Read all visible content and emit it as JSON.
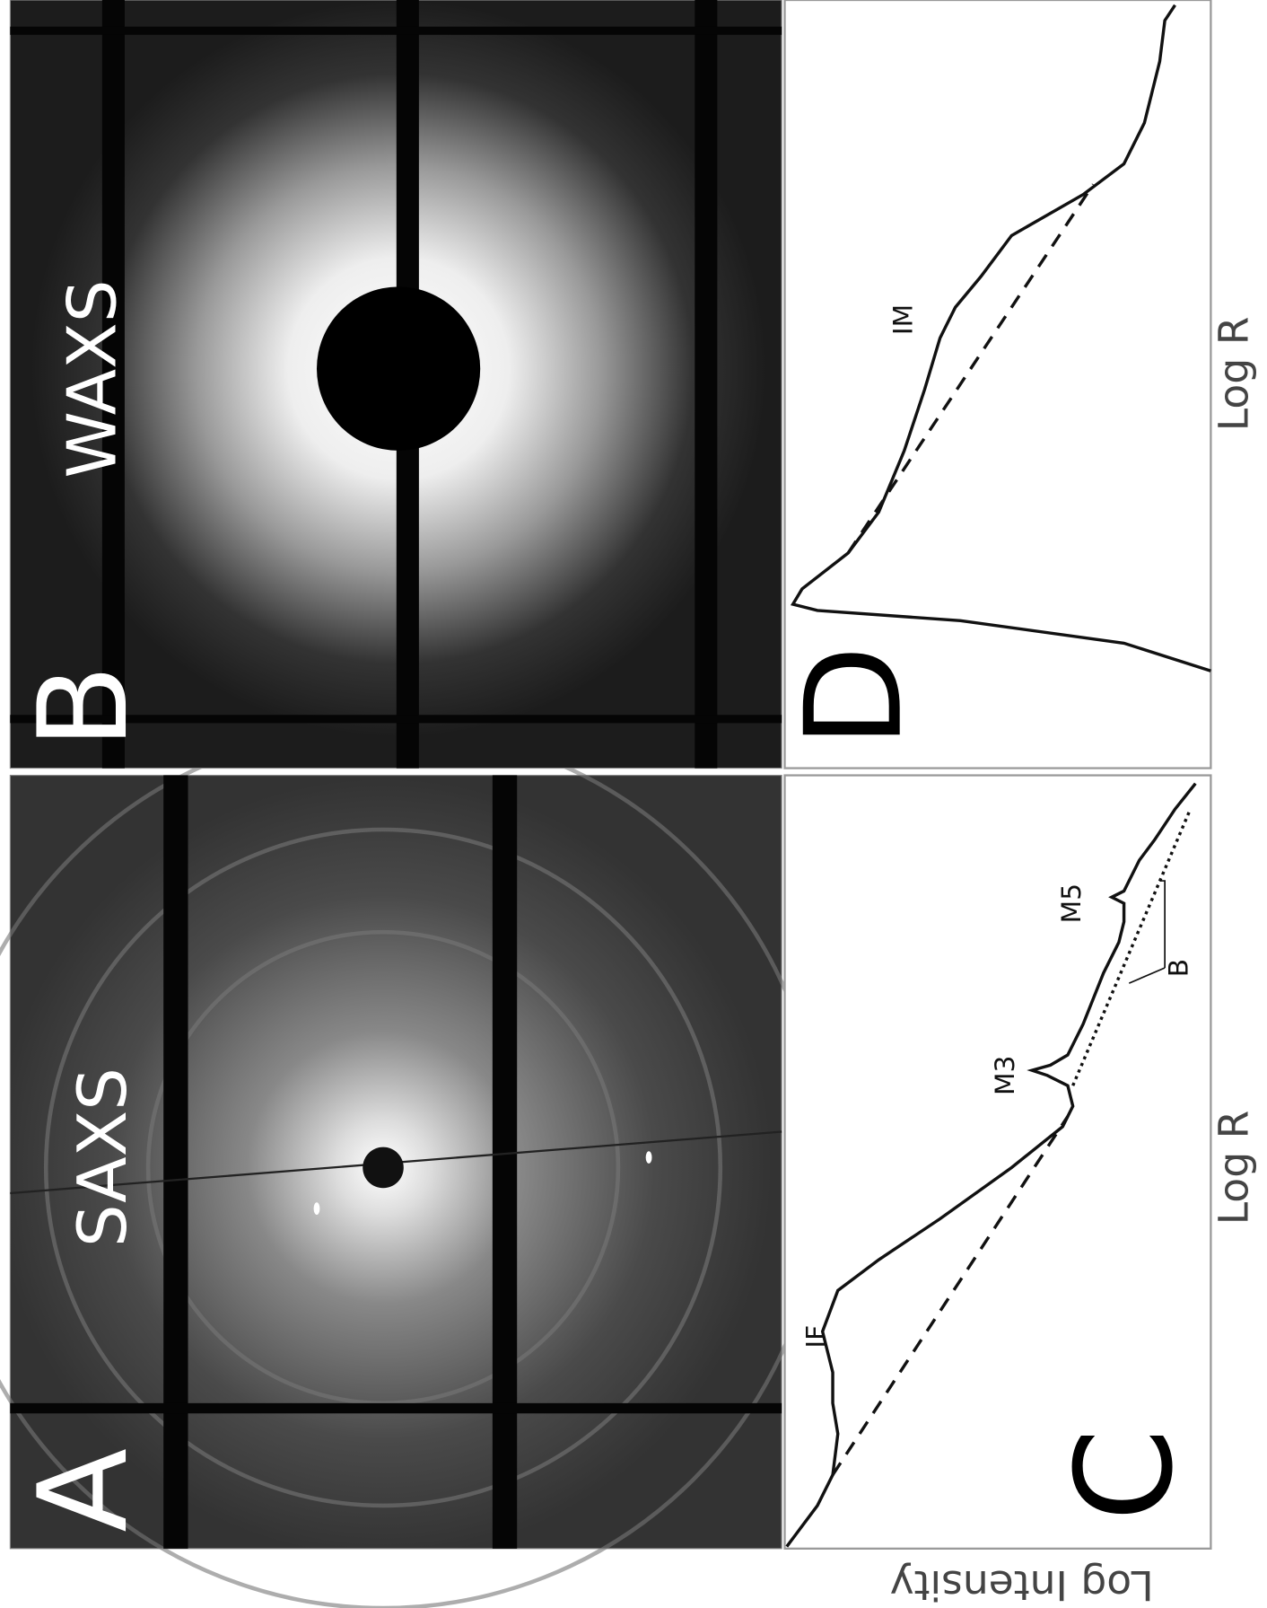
{
  "panel_a": {
    "label": "A",
    "title": "SAXS"
  },
  "panel_b": {
    "label": "B",
    "title": "WAXS"
  },
  "panel_c": {
    "label": "C",
    "x_label": "Log R",
    "y_label": "Log Intensity",
    "annotations": [
      "IF",
      "M3",
      "M5",
      "B"
    ]
  },
  "panel_d": {
    "label": "D",
    "x_label": "Log R",
    "annotations": [
      "IM"
    ]
  }
}
